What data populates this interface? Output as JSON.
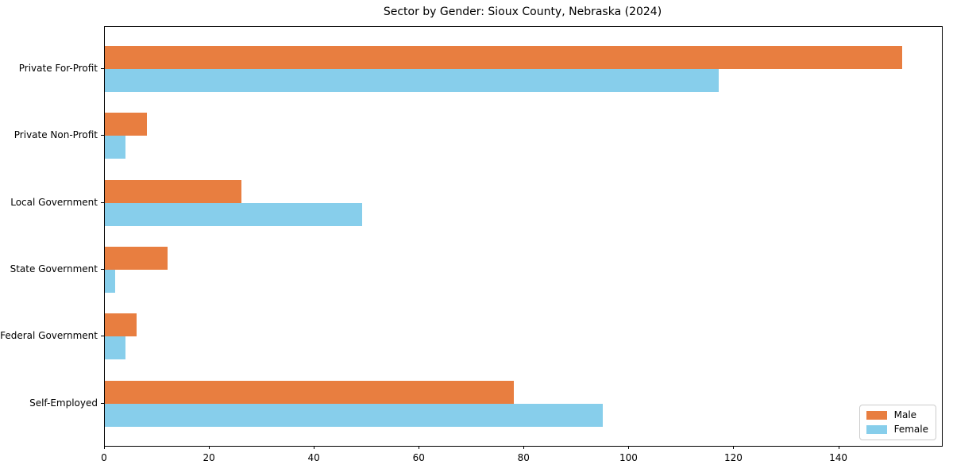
{
  "figure": {
    "title": "Sector by Gender: Sioux County, Nebraska (2024)"
  },
  "chart_data": {
    "type": "bar",
    "orientation": "horizontal",
    "title": "Sector by Gender: Sioux County, Nebraska (2024)",
    "categories": [
      "Private For-Profit",
      "Private Non-Profit",
      "Local Government",
      "State Government",
      "Federal Government",
      "Self-Employed"
    ],
    "series": [
      {
        "name": "Male",
        "color": "#E87E40",
        "values": [
          152,
          8,
          26,
          12,
          6,
          78
        ]
      },
      {
        "name": "Female",
        "color": "#87CEEB",
        "values": [
          117,
          4,
          49,
          2,
          4,
          95
        ]
      }
    ],
    "xlabel": "",
    "ylabel": "",
    "xlim": [
      0,
      159.6
    ],
    "xticks": [
      0,
      20,
      40,
      60,
      80,
      100,
      120,
      140
    ],
    "grid": false,
    "legend_position": "lower right",
    "frame": "full-box",
    "background_color": "#ffffff",
    "text_color": "#000000"
  }
}
